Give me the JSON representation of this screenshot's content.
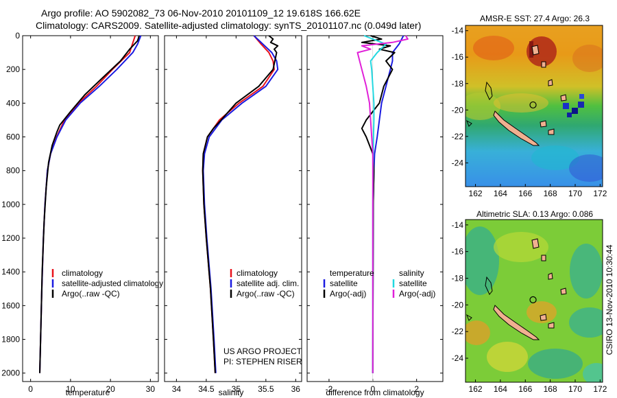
{
  "header": {
    "title_line1": "Argo profile: AO 5902082_73 06-Nov-2010 20101109_12 19.618S 166.62E",
    "title_line2": "Climatology: CARS2009. Satellite-adjusted climatology: synTS_20101107.nc (0.049d later)"
  },
  "colors": {
    "red": "#e8111a",
    "blue": "#1a1ae0",
    "black": "#000000",
    "cyan": "#22d8e0",
    "magenta": "#e020d8"
  },
  "chart_data": [
    {
      "id": "temperature",
      "type": "line",
      "xlabel": "temperature",
      "xlim": [
        -2,
        32
      ],
      "ylim": [
        0,
        2050
      ],
      "xticks": [
        "0",
        "10",
        "20",
        "30"
      ],
      "xtick_values": [
        0,
        10,
        20,
        30
      ],
      "yticks": [
        "0",
        "200",
        "400",
        "600",
        "800",
        "1000",
        "1200",
        "1400",
        "1600",
        "1800",
        "2000"
      ],
      "ytick_values": [
        0,
        200,
        400,
        600,
        800,
        1000,
        1200,
        1400,
        1600,
        1800,
        2000
      ],
      "legend": [
        "climatology",
        "satellite-adjusted climatology",
        "Argo(..raw -QC)"
      ],
      "series": [
        {
          "name": "climatology",
          "color": "red",
          "depth": [
            0,
            50,
            100,
            200,
            300,
            400,
            500,
            550,
            600,
            700,
            800,
            1000,
            1200,
            1500,
            1800,
            2000
          ],
          "values": [
            26.2,
            25.5,
            24.8,
            20.5,
            16.5,
            12.0,
            8.5,
            7.5,
            6.5,
            5.0,
            4.2,
            3.6,
            3.2,
            2.8,
            2.5,
            2.3
          ]
        },
        {
          "name": "satellite",
          "color": "blue",
          "depth": [
            0,
            50,
            100,
            200,
            300,
            400,
            500,
            550,
            600,
            700,
            800,
            1000,
            1200,
            1500,
            1800,
            2000
          ],
          "values": [
            27.6,
            26.8,
            25.6,
            21.6,
            17.2,
            12.4,
            8.8,
            7.7,
            6.6,
            5.0,
            4.2,
            3.6,
            3.2,
            2.8,
            2.5,
            2.3
          ]
        },
        {
          "name": "argo",
          "color": "black",
          "depth": [
            0,
            30,
            80,
            150,
            250,
            350,
            450,
            530,
            570,
            650,
            750,
            900,
            1100,
            1400,
            1700,
            2000
          ],
          "values": [
            27.2,
            26.8,
            24.8,
            22.5,
            18.0,
            13.6,
            10.0,
            7.3,
            6.6,
            5.4,
            4.5,
            3.9,
            3.4,
            2.9,
            2.6,
            2.3
          ]
        }
      ]
    },
    {
      "id": "salinity",
      "type": "line",
      "xlabel": "salinity",
      "xlim": [
        33.8,
        36.1
      ],
      "ylim": [
        0,
        2050
      ],
      "xticks": [
        "34",
        "34.5",
        "35",
        "35.5",
        "36"
      ],
      "xtick_values": [
        34,
        34.5,
        35,
        35.5,
        36
      ],
      "legend": [
        "climatology",
        "satellite adj. clim.",
        "Argo(..raw -QC)"
      ],
      "annotation": [
        "US ARGO PROJECT",
        "PI: STEPHEN RISER"
      ],
      "series": [
        {
          "name": "climatology",
          "color": "red",
          "depth": [
            0,
            50,
            100,
            150,
            200,
            300,
            400,
            500,
            600,
            700,
            800,
            1000,
            1200,
            1500,
            1800,
            2000
          ],
          "values": [
            35.3,
            35.42,
            35.55,
            35.62,
            35.64,
            35.45,
            35.05,
            34.72,
            34.52,
            34.45,
            34.44,
            34.46,
            34.5,
            34.57,
            34.62,
            34.65
          ]
        },
        {
          "name": "satellite",
          "color": "blue",
          "depth": [
            0,
            50,
            100,
            150,
            200,
            300,
            400,
            500,
            600,
            700,
            800,
            1000,
            1200,
            1500,
            1800,
            2000
          ],
          "values": [
            35.3,
            35.45,
            35.6,
            35.68,
            35.7,
            35.5,
            35.1,
            34.76,
            34.55,
            34.47,
            34.45,
            34.47,
            34.51,
            34.58,
            34.63,
            34.66
          ]
        },
        {
          "name": "argo",
          "color": "black",
          "depth": [
            0,
            20,
            40,
            60,
            80,
            100,
            150,
            200,
            250,
            300,
            400,
            500,
            550,
            600,
            700,
            800,
            1000,
            1200,
            1500,
            1800,
            2000
          ],
          "values": [
            35.55,
            35.62,
            35.58,
            35.7,
            35.64,
            35.68,
            35.65,
            35.62,
            35.5,
            35.38,
            35.0,
            34.75,
            34.62,
            34.52,
            34.45,
            34.44,
            34.46,
            34.5,
            34.57,
            34.62,
            34.65
          ]
        }
      ]
    },
    {
      "id": "difference",
      "type": "line",
      "xlabel": "difference from climatology",
      "xlim": [
        -3,
        3.2
      ],
      "ylim": [
        0,
        2050
      ],
      "xticks": [
        "-2",
        "0",
        "2"
      ],
      "xtick_values": [
        -2,
        0,
        2
      ],
      "legend_headers": [
        "temperature",
        "salinity"
      ],
      "legend_left": [
        "satellite",
        "Argo(-adj)"
      ],
      "legend_right": [
        "satellite",
        "Argo(-adj)"
      ],
      "series": [
        {
          "name": "temperature satellite",
          "color": "blue",
          "depth": [
            0,
            50,
            100,
            150,
            200,
            300,
            400,
            500,
            600,
            700,
            800,
            1000,
            1500,
            2000
          ],
          "values": [
            1.4,
            1.2,
            0.9,
            0.9,
            0.8,
            0.6,
            0.4,
            0.3,
            0.2,
            0.08,
            0.05,
            0.02,
            0.01,
            0.0
          ]
        },
        {
          "name": "temperature argo",
          "color": "black",
          "depth": [
            0,
            20,
            40,
            60,
            80,
            100,
            150,
            200,
            300,
            400,
            500,
            550,
            600,
            650,
            700,
            800,
            1000,
            1500,
            2000
          ],
          "values": [
            -0.1,
            0.4,
            -0.5,
            0.8,
            0.3,
            1.0,
            0.6,
            0.9,
            0.5,
            0.3,
            -0.3,
            -0.5,
            -0.3,
            -0.15,
            0.0,
            0.05,
            0.02,
            0.01,
            0.0
          ]
        },
        {
          "name": "salinity satellite",
          "color": "cyan",
          "depth": [
            0,
            50,
            100,
            150,
            200,
            300,
            400,
            500,
            600,
            700,
            800,
            1000,
            1500,
            2000
          ],
          "values": [
            -0.4,
            0.6,
            0.2,
            -0.1,
            -0.05,
            0.0,
            0.05,
            0.05,
            0.03,
            0.02,
            0.01,
            0.0,
            0.0,
            0.0
          ]
        },
        {
          "name": "salinity argo",
          "color": "magenta",
          "depth": [
            0,
            20,
            40,
            60,
            80,
            100,
            150,
            200,
            300,
            400,
            500,
            600,
            700,
            800,
            1000,
            1500,
            2000
          ],
          "values": [
            1.5,
            1.6,
            0.9,
            -0.5,
            -0.1,
            -0.7,
            -0.6,
            -0.5,
            -0.3,
            -0.15,
            -0.1,
            -0.05,
            0.0,
            0.0,
            0.0,
            0.0,
            0.0
          ]
        }
      ]
    },
    {
      "id": "sst_map",
      "type": "heatmap",
      "title": "AMSR-E SST: 27.4 Argo: 26.3",
      "xlim": [
        161.2,
        172.2
      ],
      "ylim": [
        -25.8,
        -13.6
      ],
      "xticks": [
        "162",
        "164",
        "166",
        "168",
        "170",
        "172"
      ],
      "xtick_values": [
        162,
        164,
        166,
        168,
        170,
        172
      ],
      "yticks": [
        "-14",
        "-16",
        "-18",
        "-20",
        "-22",
        "-24"
      ],
      "ytick_values": [
        -14,
        -16,
        -18,
        -20,
        -22,
        -24
      ],
      "argo_lon": 166.62,
      "argo_lat": -19.618
    },
    {
      "id": "sla_map",
      "type": "heatmap",
      "title": "Altimetric SLA: 0.13 Argo: 0.086",
      "xlim": [
        161.2,
        172.2
      ],
      "ylim": [
        -25.8,
        -13.6
      ],
      "xticks": [
        "162",
        "164",
        "166",
        "168",
        "170",
        "172"
      ],
      "xtick_values": [
        162,
        164,
        166,
        168,
        170,
        172
      ],
      "yticks": [
        "-14",
        "-16",
        "-18",
        "-20",
        "-22",
        "-24"
      ],
      "ytick_values": [
        -14,
        -16,
        -18,
        -20,
        -22,
        -24
      ],
      "argo_lon": 166.62,
      "argo_lat": -19.618
    }
  ],
  "side_label": "CSIRO 13-Nov-2010 10:30:44"
}
